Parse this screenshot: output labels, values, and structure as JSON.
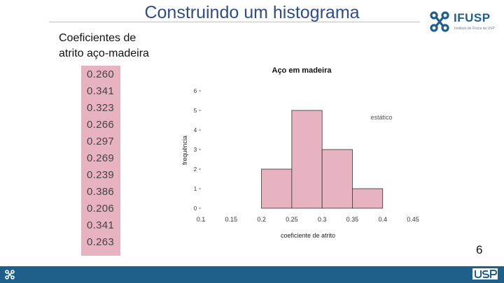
{
  "slide": {
    "title": "Construindo um histograma",
    "subtitle_line1": "Coeficientes de",
    "subtitle_line2": "atrito aço-madeira",
    "page_number": "6"
  },
  "logo": {
    "name": "IFUSP",
    "subtitle": "Instituto de Física da USP"
  },
  "values": [
    "0.260",
    "0.341",
    "0.323",
    "0.266",
    "0.297",
    "0.269",
    "0.239",
    "0.386",
    "0.206",
    "0.341",
    "0.263"
  ],
  "colors": {
    "accent": "#2f4c8a",
    "bar_fill": "#e8b3c0",
    "footer": "#1e5f8a"
  },
  "chart_data": {
    "type": "bar",
    "title": "Aço em madeira",
    "xlabel": "coeficiente de atrito",
    "ylabel": "frequência",
    "annotation": "estático",
    "x_ticks": [
      "0.1",
      "0.15",
      "0.2",
      "0.25",
      "0.3",
      "0.35",
      "0.4",
      "0.45"
    ],
    "y_ticks": [
      "0",
      "1",
      "2",
      "3",
      "4",
      "5",
      "6"
    ],
    "xlim": [
      0.1,
      0.45
    ],
    "ylim": [
      0,
      6
    ],
    "bins": [
      {
        "start": 0.2,
        "end": 0.25,
        "value": 2
      },
      {
        "start": 0.25,
        "end": 0.3,
        "value": 5
      },
      {
        "start": 0.3,
        "end": 0.35,
        "value": 3
      },
      {
        "start": 0.35,
        "end": 0.4,
        "value": 1
      }
    ]
  }
}
